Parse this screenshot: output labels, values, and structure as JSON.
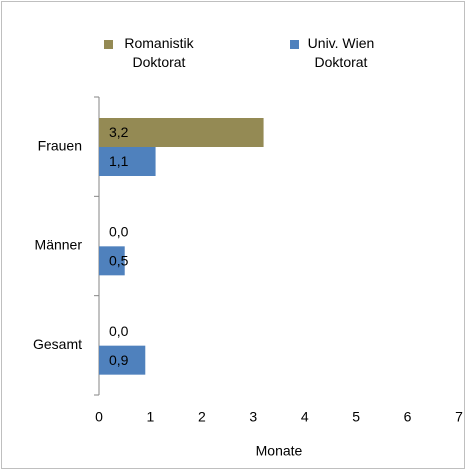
{
  "chart_data": {
    "type": "barh",
    "categories": [
      "Frauen",
      "Männer",
      "Gesamt"
    ],
    "series": [
      {
        "name": "Romanistik Doktorat",
        "color": "#948a54",
        "values": [
          3.2,
          0.0,
          0.0
        ],
        "value_labels": [
          "3,2",
          "0,0",
          "0,0"
        ]
      },
      {
        "name": "Univ. Wien Doktorat",
        "color": "#4f81bd",
        "values": [
          1.1,
          0.5,
          0.9
        ],
        "value_labels": [
          "1,1",
          "0,5",
          "0,9"
        ]
      }
    ],
    "xlim": [
      0,
      7
    ],
    "xticks": [
      0,
      1,
      2,
      3,
      4,
      5,
      6,
      7
    ],
    "x_label": "Monate",
    "grid": false,
    "legend": "top"
  }
}
